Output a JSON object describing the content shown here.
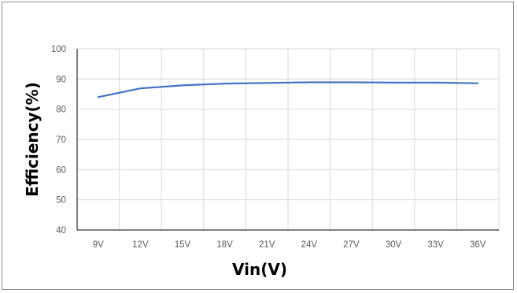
{
  "chart_data": {
    "type": "line",
    "title": "",
    "xlabel": "Vin(V)",
    "ylabel": "Efficiency(%)",
    "categories": [
      "9V",
      "12V",
      "15V",
      "18V",
      "21V",
      "24V",
      "27V",
      "30V",
      "33V",
      "36V"
    ],
    "series": [
      {
        "values": [
          84.0,
          86.9,
          87.9,
          88.5,
          88.7,
          88.9,
          88.9,
          88.8,
          88.8,
          88.6
        ]
      }
    ],
    "ylim": [
      40,
      100
    ],
    "yticks": [
      40,
      50,
      60,
      70,
      80,
      90,
      100
    ],
    "grid": true,
    "line_color": "#4472C4",
    "grid_color": "#d9d9d9",
    "axis_color": "#000000"
  }
}
